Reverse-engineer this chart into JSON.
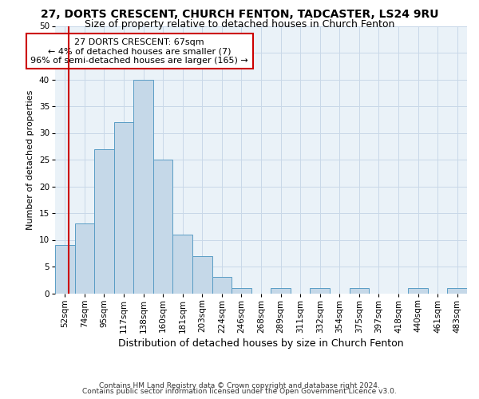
{
  "title1": "27, DORTS CRESCENT, CHURCH FENTON, TADCASTER, LS24 9RU",
  "title2": "Size of property relative to detached houses in Church Fenton",
  "xlabel": "Distribution of detached houses by size in Church Fenton",
  "ylabel": "Number of detached properties",
  "footnote1": "Contains HM Land Registry data © Crown copyright and database right 2024.",
  "footnote2": "Contains public sector information licensed under the Open Government Licence v3.0.",
  "bin_labels": [
    "52sqm",
    "74sqm",
    "95sqm",
    "117sqm",
    "138sqm",
    "160sqm",
    "181sqm",
    "203sqm",
    "224sqm",
    "246sqm",
    "268sqm",
    "289sqm",
    "311sqm",
    "332sqm",
    "354sqm",
    "375sqm",
    "397sqm",
    "418sqm",
    "440sqm",
    "461sqm",
    "483sqm"
  ],
  "bar_values": [
    9,
    13,
    27,
    32,
    40,
    25,
    11,
    7,
    3,
    1,
    0,
    1,
    0,
    1,
    0,
    1,
    0,
    0,
    1,
    0,
    1
  ],
  "bar_color": "#c5d8e8",
  "bar_edge_color": "#5a9dc5",
  "ylim": [
    0,
    50
  ],
  "yticks": [
    0,
    5,
    10,
    15,
    20,
    25,
    30,
    35,
    40,
    45,
    50
  ],
  "vline_color": "#cc0000",
  "annotation_text": "27 DORTS CRESCENT: 67sqm\n← 4% of detached houses are smaller (7)\n96% of semi-detached houses are larger (165) →",
  "annotation_box_color": "#ffffff",
  "annotation_border_color": "#cc0000",
  "grid_color": "#c8d8e8",
  "background_color": "#eaf2f8",
  "title1_fontsize": 10,
  "title2_fontsize": 9,
  "xlabel_fontsize": 9,
  "ylabel_fontsize": 8,
  "tick_fontsize": 7.5,
  "annotation_fontsize": 8,
  "footnote_fontsize": 6.5,
  "vline_x": 0.182
}
